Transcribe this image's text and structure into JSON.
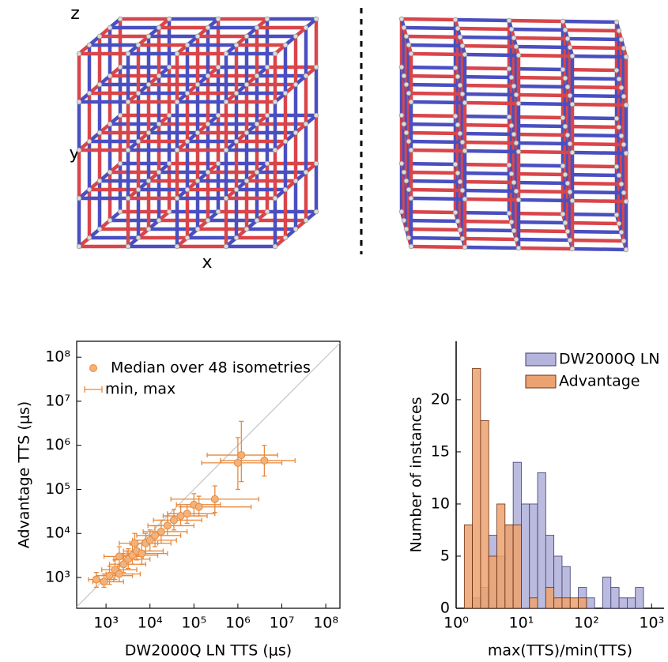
{
  "lattice": {
    "axis_labels": {
      "z": "z",
      "y": "y",
      "x": "x"
    }
  },
  "chart_data": [
    {
      "type": "scatter",
      "xlabel": "DW2000Q LN TTS (μs)",
      "ylabel": "Advantage TTS (μs)",
      "xlog": true,
      "ylog": true,
      "grid": false,
      "diagonal": true,
      "legend": "upper left",
      "xlim": [
        215,
        210000000
      ],
      "ylim": [
        200,
        230000000
      ],
      "xticks": [
        {
          "value": 1000,
          "label": "10³"
        },
        {
          "value": 10000,
          "label": "10⁴"
        },
        {
          "value": 100000,
          "label": "10⁵"
        },
        {
          "value": 1000000,
          "label": "10⁶"
        },
        {
          "value": 10000000,
          "label": "10⁷"
        },
        {
          "value": 100000000,
          "label": "10⁸"
        }
      ],
      "yticks": [
        {
          "value": 1000,
          "label": "10³"
        },
        {
          "value": 10000,
          "label": "10⁴"
        },
        {
          "value": 100000,
          "label": "10⁵"
        },
        {
          "value": 1000000,
          "label": "10⁶"
        },
        {
          "value": 10000000,
          "label": "10⁷"
        },
        {
          "value": 100000000,
          "label": "10⁸"
        }
      ],
      "error_label": "min, max",
      "series": [
        {
          "name": "Median over 48 isometries",
          "color": "#e8893c",
          "x": [
            600,
            900,
            1200,
            1600,
            2000,
            2500,
            3200,
            4000,
            5000,
            6500,
            8000,
            10000,
            13000,
            18000,
            25000,
            35000,
            50000,
            70000,
            100000,
            130000,
            300000,
            1000000,
            1200000,
            4000000,
            2000,
            4500
          ],
          "y": [
            900,
            800,
            1100,
            1500,
            1200,
            2000,
            2600,
            3200,
            4000,
            3500,
            6000,
            7000,
            9000,
            11000,
            15000,
            20000,
            25000,
            28000,
            45000,
            40000,
            60000,
            400000,
            600000,
            450000,
            3000,
            6000
          ],
          "x_min": [
            400,
            500,
            600,
            800,
            1000,
            1200,
            1500,
            2000,
            2500,
            3000,
            3500,
            4000,
            5000,
            7000,
            9000,
            12000,
            20000,
            25000,
            40000,
            50000,
            30000,
            150000,
            200000,
            400000,
            900,
            2000
          ],
          "x_max": [
            1500,
            2500,
            4000,
            5000,
            6000,
            8000,
            10000,
            15000,
            20000,
            25000,
            30000,
            40000,
            50000,
            70000,
            100000,
            150000,
            200000,
            300000,
            400000,
            2000000,
            3000000,
            10000000,
            8000000,
            20000000,
            7000,
            15000
          ],
          "y_min": [
            600,
            600,
            700,
            900,
            800,
            1300,
            1600,
            2000,
            2500,
            2000,
            3500,
            4000,
            5000,
            6000,
            9000,
            12000,
            15000,
            17000,
            25000,
            25000,
            30000,
            100000,
            150000,
            200000,
            1800,
            3500
          ],
          "y_max": [
            1300,
            1200,
            1800,
            2500,
            2000,
            3500,
            4500,
            5500,
            7000,
            6000,
            10000,
            12000,
            15000,
            20000,
            25000,
            35000,
            40000,
            45000,
            80000,
            70000,
            120000,
            1500000,
            3500000,
            1000000,
            5000,
            10000
          ]
        }
      ]
    },
    {
      "type": "histogram",
      "xlabel": "max(TTS)/min(TTS)",
      "ylabel": "Number of instances",
      "xlog": true,
      "legend": "upper right",
      "xlim": [
        1,
        1550
      ],
      "ylim": [
        0,
        25.6
      ],
      "xticks": [
        {
          "value": 1,
          "label": "10⁰"
        },
        {
          "value": 10,
          "label": "10¹"
        },
        {
          "value": 100,
          "label": "10²"
        },
        {
          "value": 1000,
          "label": "10³"
        }
      ],
      "yticks": [
        0,
        5,
        10,
        15,
        20
      ],
      "bins": [
        1.334,
        1.778,
        2.371,
        3.162,
        4.217,
        5.623,
        7.499,
        10,
        13.34,
        17.78,
        23.71,
        31.62,
        42.17,
        56.23,
        74.99,
        100,
        133.4,
        177.8,
        237.1,
        316.2,
        421.7,
        562.3,
        749.9,
        1000
      ],
      "series": [
        {
          "name": "DW2000Q LN",
          "color": "#b4b4dc",
          "values": [
            0,
            1,
            2,
            7,
            5,
            8,
            14,
            10,
            10,
            13,
            7,
            5,
            4,
            0,
            2,
            1,
            0,
            3,
            2,
            1,
            1,
            2,
            0
          ]
        },
        {
          "name": "Advantage",
          "color": "#eca270",
          "values": [
            8,
            23,
            18,
            5,
            10,
            8,
            8,
            0,
            1,
            0,
            2,
            1,
            1,
            1,
            1,
            0,
            0,
            0,
            0,
            0,
            0,
            0,
            0
          ]
        }
      ]
    }
  ]
}
